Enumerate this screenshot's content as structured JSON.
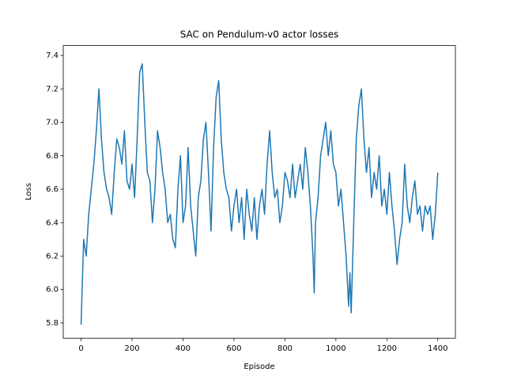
{
  "chart_data": {
    "type": "line",
    "title": "SAC on Pendulum-v0 actor losses",
    "x_label": "Episode",
    "y_label": "Loss",
    "x": [
      0,
      10,
      20,
      30,
      40,
      50,
      60,
      70,
      80,
      90,
      100,
      110,
      120,
      130,
      140,
      150,
      160,
      170,
      180,
      190,
      200,
      210,
      220,
      230,
      240,
      250,
      260,
      270,
      280,
      290,
      300,
      310,
      320,
      330,
      340,
      350,
      360,
      370,
      380,
      390,
      400,
      410,
      420,
      430,
      440,
      450,
      460,
      470,
      480,
      490,
      500,
      510,
      520,
      530,
      540,
      550,
      560,
      570,
      580,
      590,
      600,
      610,
      620,
      630,
      640,
      650,
      660,
      670,
      680,
      690,
      700,
      710,
      720,
      730,
      740,
      750,
      760,
      770,
      780,
      790,
      800,
      810,
      820,
      830,
      840,
      850,
      860,
      870,
      880,
      890,
      900,
      910,
      915,
      920,
      930,
      940,
      950,
      960,
      970,
      980,
      990,
      1000,
      1010,
      1020,
      1030,
      1040,
      1050,
      1055,
      1060,
      1070,
      1080,
      1090,
      1100,
      1110,
      1120,
      1130,
      1140,
      1150,
      1160,
      1170,
      1180,
      1190,
      1200,
      1210,
      1220,
      1230,
      1240,
      1250,
      1260,
      1270,
      1280,
      1290,
      1300,
      1310,
      1320,
      1330,
      1340,
      1350,
      1360,
      1370,
      1380,
      1390,
      1400
    ],
    "series": [
      {
        "name": "actor loss",
        "color": "#1f77b4",
        "values": [
          5.79,
          6.3,
          6.2,
          6.45,
          6.6,
          6.75,
          6.95,
          7.2,
          6.9,
          6.7,
          6.6,
          6.55,
          6.45,
          6.7,
          6.9,
          6.85,
          6.75,
          6.95,
          6.65,
          6.6,
          6.75,
          6.55,
          6.9,
          7.3,
          7.35,
          7.0,
          6.7,
          6.65,
          6.4,
          6.6,
          6.95,
          6.85,
          6.7,
          6.6,
          6.4,
          6.45,
          6.3,
          6.25,
          6.6,
          6.8,
          6.4,
          6.5,
          6.85,
          6.5,
          6.35,
          6.2,
          6.55,
          6.65,
          6.9,
          7.0,
          6.7,
          6.35,
          6.85,
          7.15,
          7.25,
          6.9,
          6.7,
          6.6,
          6.55,
          6.35,
          6.5,
          6.6,
          6.4,
          6.55,
          6.3,
          6.6,
          6.45,
          6.35,
          6.55,
          6.3,
          6.5,
          6.6,
          6.45,
          6.75,
          6.95,
          6.7,
          6.55,
          6.6,
          6.4,
          6.5,
          6.7,
          6.65,
          6.55,
          6.75,
          6.55,
          6.65,
          6.75,
          6.6,
          6.85,
          6.7,
          6.5,
          6.2,
          5.98,
          6.4,
          6.55,
          6.8,
          6.9,
          7.0,
          6.8,
          6.95,
          6.75,
          6.7,
          6.5,
          6.6,
          6.4,
          6.2,
          5.9,
          6.1,
          5.86,
          6.4,
          6.9,
          7.1,
          7.2,
          6.9,
          6.7,
          6.85,
          6.55,
          6.7,
          6.6,
          6.8,
          6.5,
          6.6,
          6.45,
          6.7,
          6.5,
          6.35,
          6.15,
          6.3,
          6.4,
          6.75,
          6.5,
          6.4,
          6.55,
          6.65,
          6.45,
          6.5,
          6.35,
          6.5,
          6.45,
          6.5,
          6.3,
          6.45,
          6.7
        ]
      }
    ],
    "xlim": [
      -70,
      1469
    ],
    "ylim": [
      5.709,
      7.459
    ],
    "xticks": [
      0,
      200,
      400,
      600,
      800,
      1000,
      1200,
      1400
    ],
    "yticks": [
      5.8,
      {
        "value": 6.0,
        "label": "6.0"
      },
      6.2,
      6.4,
      6.6,
      6.8,
      {
        "value": 7.0,
        "label": "7.0"
      },
      7.2,
      7.4
    ]
  }
}
